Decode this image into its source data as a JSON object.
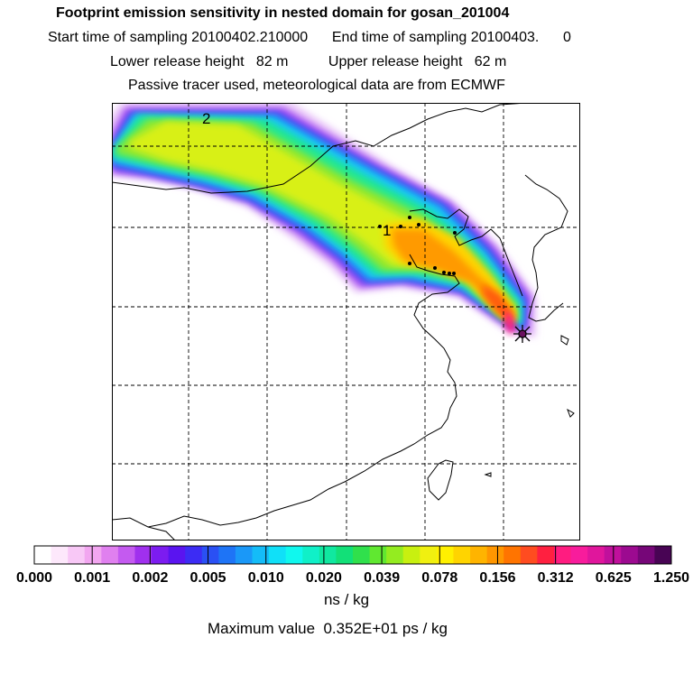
{
  "header": {
    "title": "Footprint emission sensitivity in nested domain for gosan_201004",
    "sampling": "Start time of sampling 20100402.210000      End time of sampling 20100403.      0",
    "release": "Lower release height   82 m          Upper release height   62 m",
    "note": "Passive tracer used, meteorological data are from ECMWF"
  },
  "footer": {
    "units": "ns / kg",
    "maximum": "Maximum value  0.352E+01 ps / kg"
  },
  "chart_data": {
    "type": "heatmap",
    "title": "Footprint emission sensitivity in nested domain for gosan_201004",
    "colorbar": {
      "units": "ns / kg",
      "tick_labels": [
        "0.000",
        "0.001",
        "0.002",
        "0.005",
        "0.010",
        "0.020",
        "0.039",
        "0.078",
        "0.156",
        "0.312",
        "0.625",
        "1.250"
      ],
      "colors": [
        "#ffffff",
        "#fde8fb",
        "#f8c8f6",
        "#f2a6f0",
        "#e080ef",
        "#c45af0",
        "#a030ee",
        "#7c1cf0",
        "#5a14f0",
        "#3c2cf4",
        "#2a50f4",
        "#1e74f6",
        "#1a98f8",
        "#14bcf8",
        "#10e0f8",
        "#10f8ee",
        "#10f0c8",
        "#10e8a0",
        "#12e078",
        "#30e04c",
        "#60e830",
        "#94ec20",
        "#c8f010",
        "#f0f010",
        "#fff000",
        "#ffd400",
        "#ffb400",
        "#ff9600",
        "#ff7400",
        "#ff4c20",
        "#ff2040",
        "#ff1c80",
        "#f81c9c",
        "#e0169c",
        "#c0109c",
        "#9c0a90",
        "#760678",
        "#480454"
      ]
    },
    "markers": {
      "receptor": "gosan",
      "labels": [
        "1",
        "2"
      ]
    },
    "maximum": "0.352E+01 ps / kg",
    "grid": "dashed",
    "meteorology": "ECMWF"
  }
}
